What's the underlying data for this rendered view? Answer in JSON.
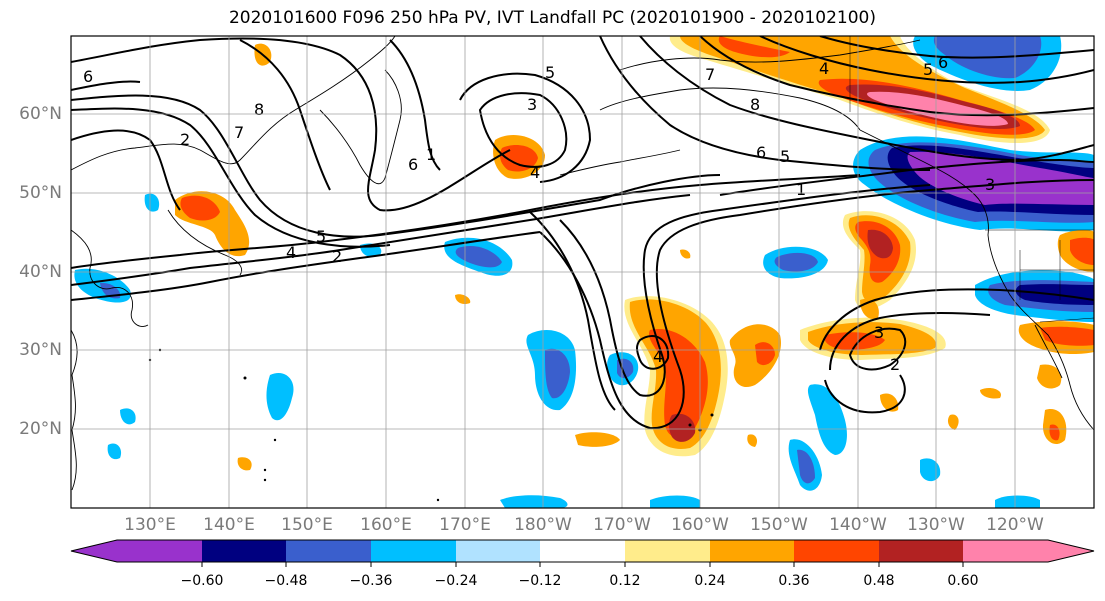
{
  "title": "2020101600 F096 250 hPa PV, IVT Landfall PC (2020101900 - 2020102100)",
  "lat_labels": [
    "20°N",
    "30°N",
    "40°N",
    "50°N",
    "60°N"
  ],
  "lon_labels": [
    "130°E",
    "140°E",
    "150°E",
    "160°E",
    "170°E",
    "180°W",
    "170°W",
    "160°W",
    "150°W",
    "140°W",
    "130°W",
    "120°W"
  ],
  "contour_labels": [
    "6",
    "2",
    "7",
    "8",
    "3",
    "4",
    "5",
    "6",
    "1",
    "4",
    "5",
    "2",
    "4",
    "7",
    "8",
    "5",
    "6",
    "5",
    "6",
    "1",
    "3",
    "2",
    "4",
    "3"
  ],
  "colorbar": {
    "ticks": [
      "−0.60",
      "−0.48",
      "−0.36",
      "−0.24",
      "−0.12",
      "0.12",
      "0.24",
      "0.36",
      "0.48",
      "0.60"
    ],
    "colors": [
      "#9932cc",
      "#000080",
      "#3a5fcd",
      "#00bfff",
      "#b0e2ff",
      "#ffffff",
      "#ffec8b",
      "#ffa500",
      "#ff4500",
      "#b22222",
      "#ff82ab"
    ]
  }
}
